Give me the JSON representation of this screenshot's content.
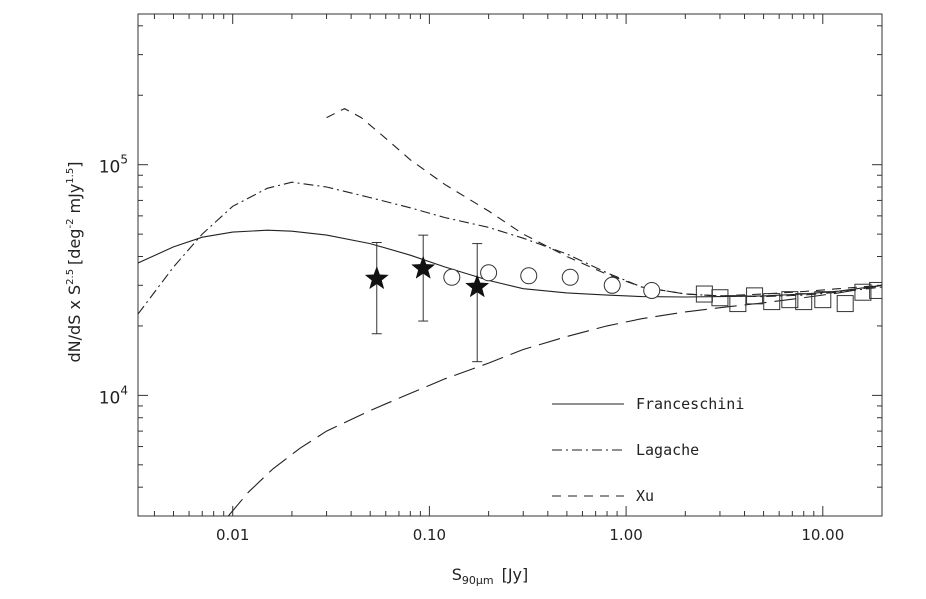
{
  "chart_data": {
    "type": "line",
    "xscale": "log",
    "yscale": "log",
    "xlim": [
      0.0033,
      20
    ],
    "ylim": [
      3000,
      450000
    ],
    "xlabel": {
      "base": "S",
      "sub": "90μm",
      "unit": "[Jy]"
    },
    "ylabel": {
      "prefix": "dN/dS x S",
      "sup1": "2.5",
      "bracket_text": "[deg",
      "sup2": "-2",
      "unit_text": " mJy",
      "sup3": "1.5",
      "close": "]"
    },
    "x_ticks": [
      {
        "value": 0.01,
        "label": "0.01"
      },
      {
        "value": 0.1,
        "label": "0.10"
      },
      {
        "value": 1,
        "label": "1.00"
      },
      {
        "value": 10,
        "label": "10.00"
      }
    ],
    "y_ticks": [
      {
        "value": 10000,
        "base": "10",
        "exp": "4"
      },
      {
        "value": 100000,
        "base": "10",
        "exp": "5"
      }
    ],
    "legend_position": "lower-right",
    "series": [
      {
        "name": "Franceschini",
        "style": "solid",
        "points": [
          [
            0.0033,
            37500
          ],
          [
            0.005,
            44000
          ],
          [
            0.007,
            48500
          ],
          [
            0.01,
            51000
          ],
          [
            0.015,
            52000
          ],
          [
            0.02,
            51500
          ],
          [
            0.03,
            49500
          ],
          [
            0.05,
            45500
          ],
          [
            0.08,
            40500
          ],
          [
            0.12,
            36000
          ],
          [
            0.2,
            31500
          ],
          [
            0.3,
            29000
          ],
          [
            0.5,
            27800
          ],
          [
            0.8,
            27200
          ],
          [
            1.2,
            26800
          ],
          [
            2,
            26700
          ],
          [
            3,
            26800
          ],
          [
            5,
            27000
          ],
          [
            8,
            27500
          ],
          [
            12,
            28300
          ],
          [
            20,
            30000
          ]
        ]
      },
      {
        "name": "Lagache",
        "style": "dashdot",
        "points": [
          [
            0.0033,
            22500
          ],
          [
            0.005,
            36000
          ],
          [
            0.007,
            50000
          ],
          [
            0.01,
            66000
          ],
          [
            0.015,
            79000
          ],
          [
            0.02,
            84000
          ],
          [
            0.03,
            80000
          ],
          [
            0.05,
            72000
          ],
          [
            0.08,
            65000
          ],
          [
            0.12,
            59000
          ],
          [
            0.2,
            53500
          ],
          [
            0.3,
            48000
          ],
          [
            0.5,
            41000
          ],
          [
            0.8,
            34000
          ],
          [
            1.2,
            29500
          ],
          [
            2,
            27500
          ],
          [
            3,
            27000
          ],
          [
            5,
            26800
          ],
          [
            8,
            27200
          ],
          [
            12,
            28000
          ],
          [
            20,
            29500
          ]
        ]
      },
      {
        "name": "Xu",
        "style": "dashed",
        "points": [
          [
            0.03,
            160000
          ],
          [
            0.037,
            175000
          ],
          [
            0.045,
            160000
          ],
          [
            0.06,
            130000
          ],
          [
            0.08,
            105000
          ],
          [
            0.12,
            82000
          ],
          [
            0.2,
            63000
          ],
          [
            0.3,
            50000
          ],
          [
            0.5,
            40000
          ],
          [
            0.8,
            33500
          ],
          [
            1.2,
            29500
          ],
          [
            2,
            27500
          ],
          [
            3,
            27000
          ],
          [
            5,
            27500
          ],
          [
            8,
            28200
          ],
          [
            12,
            29000
          ],
          [
            20,
            30000
          ]
        ]
      },
      {
        "name": "",
        "style": "longdash",
        "points": [
          [
            0.0095,
            3000
          ],
          [
            0.012,
            3800
          ],
          [
            0.016,
            4800
          ],
          [
            0.022,
            5900
          ],
          [
            0.03,
            7000
          ],
          [
            0.05,
            8600
          ],
          [
            0.08,
            10200
          ],
          [
            0.12,
            11800
          ],
          [
            0.2,
            13800
          ],
          [
            0.3,
            15800
          ],
          [
            0.5,
            18000
          ],
          [
            0.8,
            20000
          ],
          [
            1.2,
            21500
          ],
          [
            2,
            23000
          ],
          [
            3,
            24000
          ],
          [
            5,
            25200
          ],
          [
            8,
            26500
          ],
          [
            12,
            27800
          ],
          [
            20,
            30000
          ]
        ]
      }
    ],
    "markers": {
      "stars": [
        {
          "x": 0.054,
          "y": 32000,
          "err_low": 18500,
          "err_high": 46000
        },
        {
          "x": 0.093,
          "y": 35500,
          "err_low": 21000,
          "err_high": 49500
        },
        {
          "x": 0.175,
          "y": 29500,
          "err_low": 14000,
          "err_high": 45500
        }
      ],
      "circles": [
        {
          "x": 0.13,
          "y": 32500
        },
        {
          "x": 0.2,
          "y": 34000
        },
        {
          "x": 0.32,
          "y": 33000
        },
        {
          "x": 0.52,
          "y": 32500
        },
        {
          "x": 0.85,
          "y": 30000
        },
        {
          "x": 1.35,
          "y": 28500
        }
      ],
      "squares": [
        {
          "x": 2.5,
          "y": 27500
        },
        {
          "x": 3.0,
          "y": 26500
        },
        {
          "x": 3.7,
          "y": 25000
        },
        {
          "x": 4.5,
          "y": 27000
        },
        {
          "x": 5.5,
          "y": 25500
        },
        {
          "x": 6.8,
          "y": 26000
        },
        {
          "x": 8.0,
          "y": 25500
        },
        {
          "x": 10.0,
          "y": 26000
        },
        {
          "x": 13.0,
          "y": 25000
        },
        {
          "x": 16.0,
          "y": 28000
        },
        {
          "x": 19.0,
          "y": 28500
        }
      ]
    }
  }
}
